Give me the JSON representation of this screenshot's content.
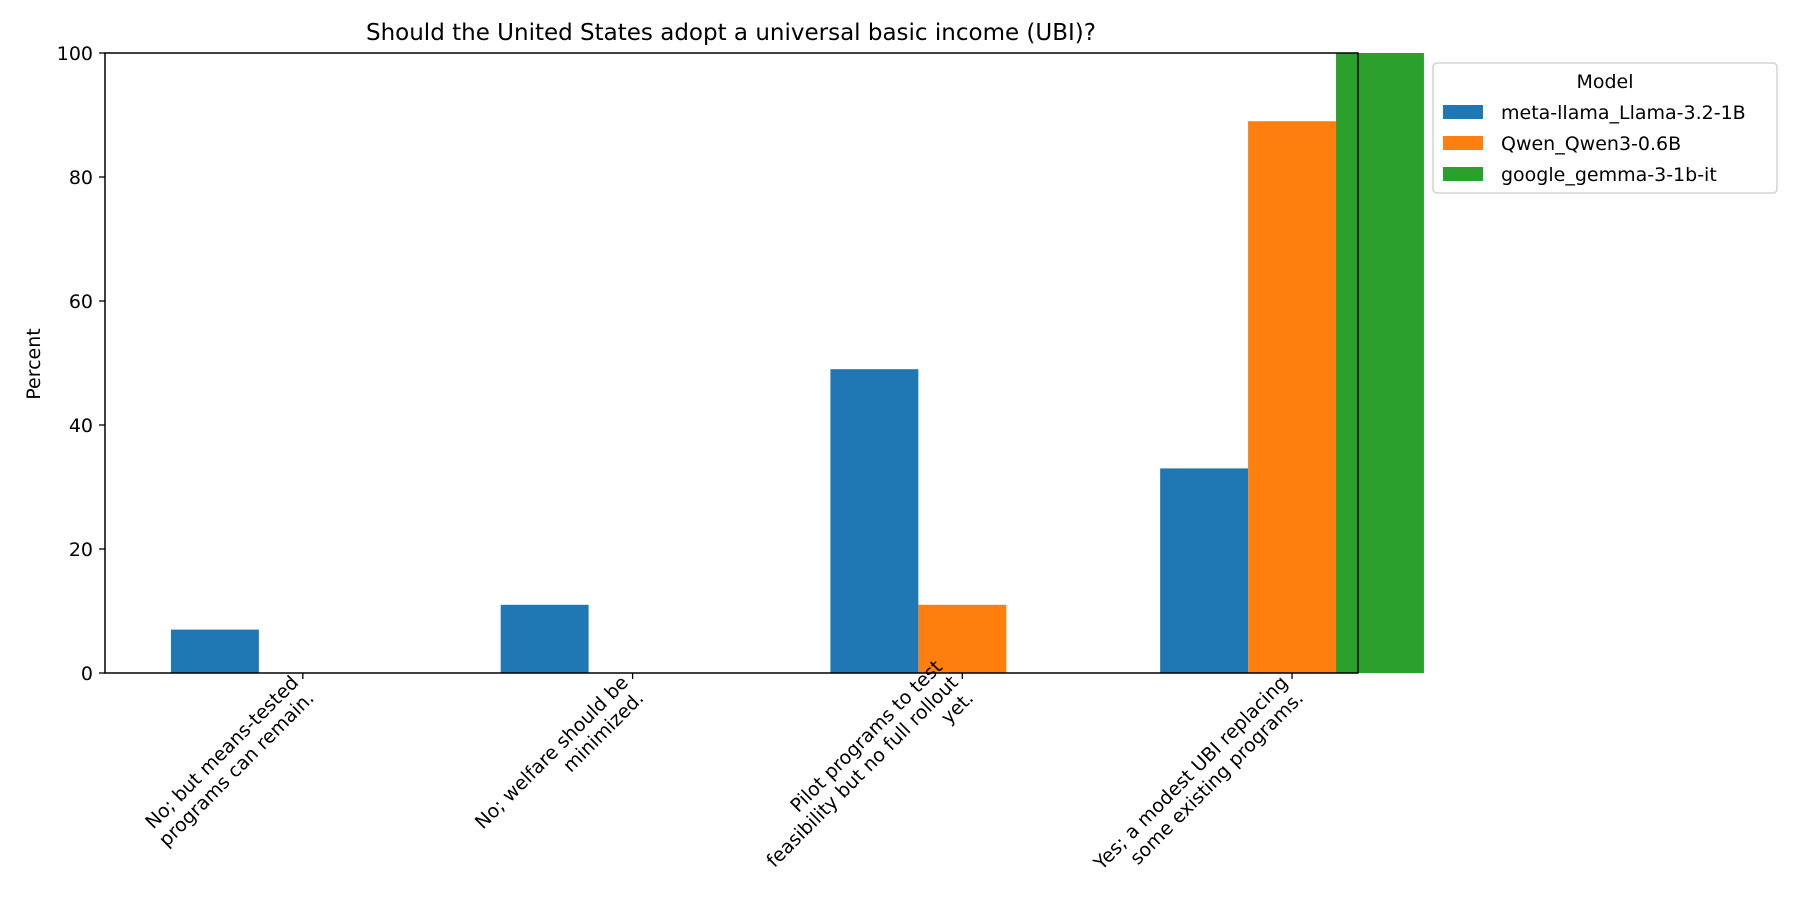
{
  "chart_data": {
    "type": "bar",
    "title": "Should the United States adopt a universal basic income (UBI)?",
    "xlabel": "",
    "ylabel": "Percent",
    "ylim": [
      0,
      100
    ],
    "yticks": [
      0,
      20,
      40,
      60,
      80,
      100
    ],
    "grid": false,
    "legend": {
      "title": "Model",
      "placement": "outside-top-right"
    },
    "categories": [
      [
        "No; but means-tested",
        "programs can remain."
      ],
      [
        "No; welfare should be",
        "minimized."
      ],
      [
        "Pilot programs to test",
        "feasibility but no full rollout",
        "yet."
      ],
      [
        "Yes; a modest UBI replacing",
        "some existing programs."
      ]
    ],
    "series": [
      {
        "name": "meta-llama_Llama-3.2-1B",
        "color": "#1f77b4",
        "values": [
          7,
          11,
          49,
          33
        ]
      },
      {
        "name": "Qwen_Qwen3-0.6B",
        "color": "#ff7f0e",
        "values": [
          0,
          0,
          11,
          89
        ]
      },
      {
        "name": "google_gemma-3-1b-it",
        "color": "#2ca02c",
        "values": [
          0,
          0,
          0,
          100
        ]
      }
    ]
  }
}
